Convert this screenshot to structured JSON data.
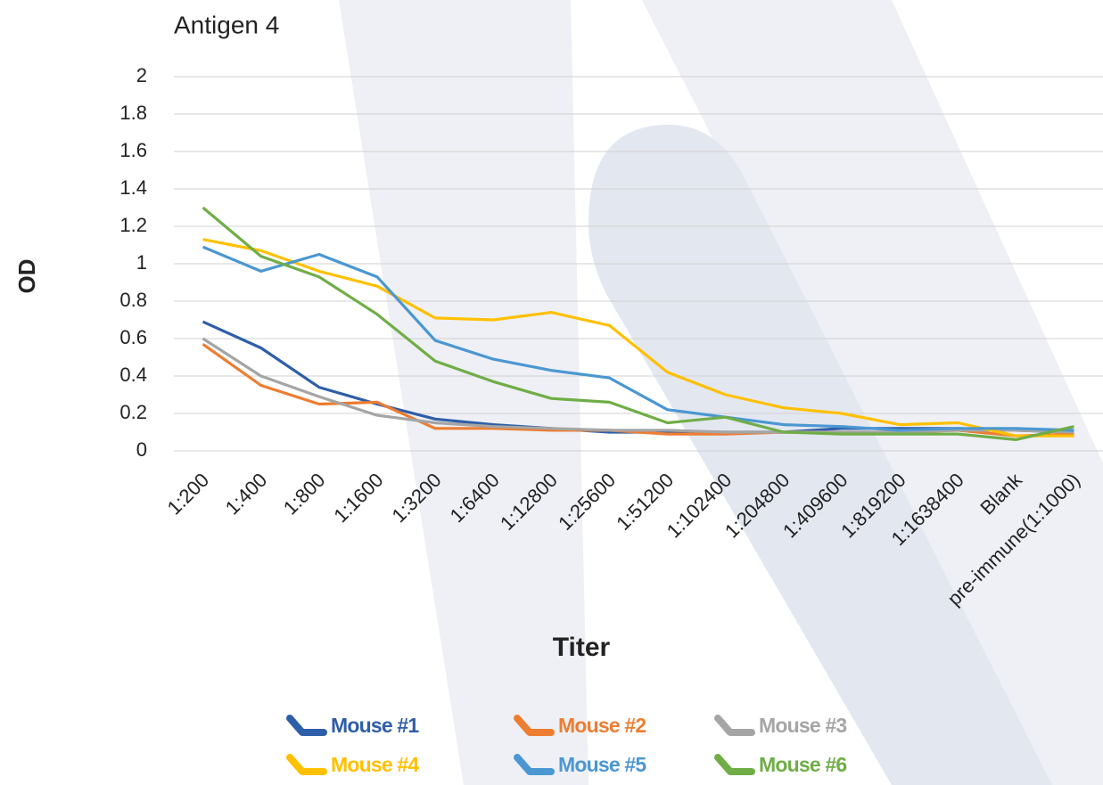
{
  "chart_data": {
    "type": "line",
    "title": "Antigen 4",
    "x_label": "Titer",
    "y_label": "OD",
    "categories": [
      "1:200",
      "1:400",
      "1:800",
      "1:1600",
      "1:3200",
      "1:6400",
      "1:12800",
      "1:25600",
      "1:51200",
      "1:102400",
      "1:204800",
      "1:409600",
      "1:819200",
      "1:1638400",
      "Blank",
      "pre-immune(1:1000)"
    ],
    "ylim": [
      0,
      2
    ],
    "yticks": [
      0,
      0.2,
      0.4,
      0.6,
      0.8,
      1,
      1.2,
      1.4,
      1.6,
      1.8,
      2
    ],
    "grid": true,
    "series": [
      {
        "name": "Mouse #1",
        "color": "#2e5ea9",
        "values": [
          0.69,
          0.55,
          0.34,
          0.25,
          0.17,
          0.14,
          0.12,
          0.1,
          0.1,
          0.1,
          0.1,
          0.12,
          0.12,
          0.12,
          0.11,
          0.1
        ]
      },
      {
        "name": "Mouse #2",
        "color": "#ed7d31",
        "values": [
          0.57,
          0.35,
          0.25,
          0.26,
          0.12,
          0.12,
          0.11,
          0.11,
          0.09,
          0.09,
          0.1,
          0.1,
          0.1,
          0.11,
          0.08,
          0.09
        ]
      },
      {
        "name": "Mouse #3",
        "color": "#a5a5a5",
        "values": [
          0.6,
          0.4,
          0.29,
          0.19,
          0.15,
          0.13,
          0.12,
          0.11,
          0.11,
          0.1,
          0.1,
          0.1,
          0.1,
          0.11,
          0.11,
          0.1
        ]
      },
      {
        "name": "Mouse #4",
        "color": "#ffc000",
        "values": [
          1.13,
          1.07,
          0.96,
          0.88,
          0.71,
          0.7,
          0.74,
          0.67,
          0.42,
          0.3,
          0.23,
          0.2,
          0.14,
          0.15,
          0.08,
          0.08
        ]
      },
      {
        "name": "Mouse #5",
        "color": "#4a97d2",
        "values": [
          1.09,
          0.96,
          1.05,
          0.93,
          0.59,
          0.49,
          0.43,
          0.39,
          0.22,
          0.18,
          0.14,
          0.13,
          0.11,
          0.12,
          0.12,
          0.11
        ]
      },
      {
        "name": "Mouse #6",
        "color": "#70ad47",
        "values": [
          1.3,
          1.04,
          0.93,
          0.73,
          0.48,
          0.37,
          0.28,
          0.26,
          0.15,
          0.18,
          0.1,
          0.09,
          0.09,
          0.09,
          0.06,
          0.13
        ]
      }
    ],
    "legend": "bottom"
  }
}
